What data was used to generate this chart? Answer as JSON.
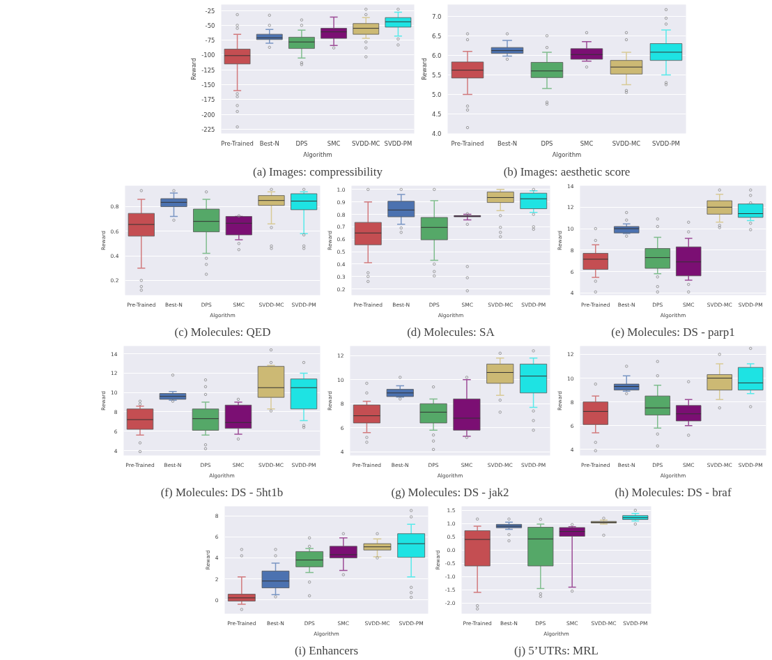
{
  "chart_data": [
    {
      "type": "box",
      "title": "(a) Images: compressibility",
      "xlabel": "Algorithm",
      "ylabel": "Reward",
      "categories": [
        "Pre-Trained",
        "Best-N",
        "DPS",
        "SMC",
        "SVDD-MC",
        "SVDD-PM"
      ],
      "colors": [
        "#c44e52",
        "#4c72b0",
        "#55a868",
        "#7b0f73",
        "#ccb974",
        "#1ee3e3"
      ],
      "ylim": [
        -232,
        -15
      ],
      "yticks": [
        -225,
        -200,
        -175,
        -150,
        -125,
        -100,
        -75,
        -50,
        -25
      ],
      "grid": "y",
      "legend": false,
      "boxes": [
        {
          "low": -160,
          "q1": -115,
          "median": -101,
          "q3": -90,
          "high": -65,
          "outliers": [
            -32,
            -50,
            -55,
            -165,
            -170,
            -185,
            -195,
            -221
          ]
        },
        {
          "low": -80,
          "q1": -74,
          "median": -71,
          "q3": -65,
          "high": -57,
          "outliers": [
            -33,
            -50,
            -87
          ]
        },
        {
          "low": -105,
          "q1": -89,
          "median": -78,
          "q3": -70,
          "high": -58,
          "outliers": [
            -41,
            -50,
            -113,
            -116
          ]
        },
        {
          "low": -84,
          "q1": -72,
          "median": -61,
          "q3": -55,
          "high": -36,
          "outliers": [
            -88
          ]
        },
        {
          "low": -72,
          "q1": -65,
          "median": -55,
          "q3": -47,
          "high": -37,
          "outliers": [
            -23,
            -32,
            -78,
            -88,
            -103
          ]
        },
        {
          "low": -68,
          "q1": -53,
          "median": -44,
          "q3": -37,
          "high": -28,
          "outliers": [
            -23,
            -73,
            -83
          ]
        }
      ]
    },
    {
      "type": "box",
      "title": "(b) Images: aesthetic score",
      "xlabel": "Algorithm",
      "ylabel": "Reward",
      "categories": [
        "Pre-Trained",
        "Best-N",
        "DPS",
        "SMC",
        "SVDD-MC",
        "SVDD-PM"
      ],
      "colors": [
        "#c44e52",
        "#4c72b0",
        "#55a868",
        "#7b0f73",
        "#ccb974",
        "#1ee3e3"
      ],
      "ylim": [
        4.0,
        7.3
      ],
      "yticks": [
        {
          "value": 4,
          "label": "4.0"
        },
        4.5,
        {
          "value": 5,
          "label": "5.0"
        },
        5.5,
        {
          "value": 6,
          "label": "6.0"
        },
        6.5,
        {
          "value": 7,
          "label": "7.0"
        }
      ],
      "grid": "y",
      "legend": false,
      "boxes": [
        {
          "low": 5.0,
          "q1": 5.42,
          "median": 5.62,
          "q3": 5.83,
          "high": 6.1,
          "outliers": [
            6.55,
            6.4,
            4.7,
            4.6,
            4.15
          ]
        },
        {
          "low": 5.98,
          "q1": 6.05,
          "median": 6.12,
          "q3": 6.2,
          "high": 6.38,
          "outliers": [
            6.55,
            5.9
          ]
        },
        {
          "low": 5.15,
          "q1": 5.43,
          "median": 5.6,
          "q3": 5.82,
          "high": 6.08,
          "outliers": [
            6.5,
            6.2,
            4.8,
            4.75
          ]
        },
        {
          "low": 5.85,
          "q1": 5.9,
          "median": 6.02,
          "q3": 6.17,
          "high": 6.35,
          "outliers": [
            6.58,
            5.7
          ]
        },
        {
          "low": 5.25,
          "q1": 5.52,
          "median": 5.7,
          "q3": 5.87,
          "high": 6.08,
          "outliers": [
            6.58,
            6.4,
            5.1,
            5.05
          ]
        },
        {
          "low": 5.5,
          "q1": 5.87,
          "median": 6.08,
          "q3": 6.3,
          "high": 6.65,
          "outliers": [
            7.17,
            6.95,
            6.8,
            5.3,
            5.25
          ]
        }
      ]
    },
    {
      "type": "box",
      "title": "(c) Molecules: QED",
      "xlabel": "Algorithm",
      "ylabel": "Reward",
      "categories": [
        "Pre-Trained",
        "Best-N",
        "DPS",
        "SMC",
        "SVDD-MC",
        "SVDD-PM"
      ],
      "colors": [
        "#c44e52",
        "#4c72b0",
        "#55a868",
        "#7b0f73",
        "#ccb974",
        "#1ee3e3"
      ],
      "ylim": [
        0.08,
        0.97
      ],
      "yticks": [
        0.2,
        0.4,
        0.6,
        0.8
      ],
      "grid": "y",
      "legend": false,
      "boxes": [
        {
          "low": 0.3,
          "q1": 0.56,
          "median": 0.655,
          "q3": 0.745,
          "high": 0.86,
          "outliers": [
            0.93,
            0.2,
            0.15,
            0.12
          ]
        },
        {
          "low": 0.72,
          "q1": 0.8,
          "median": 0.835,
          "q3": 0.865,
          "high": 0.91,
          "outliers": [
            0.93,
            0.69
          ]
        },
        {
          "low": 0.42,
          "q1": 0.595,
          "median": 0.68,
          "q3": 0.78,
          "high": 0.86,
          "outliers": [
            0.92,
            0.38,
            0.33,
            0.25
          ]
        },
        {
          "low": 0.53,
          "q1": 0.57,
          "median": 0.665,
          "q3": 0.72,
          "high": 0.72,
          "outliers": [
            0.725,
            0.5,
            0.45
          ]
        },
        {
          "low": 0.66,
          "q1": 0.81,
          "median": 0.85,
          "q3": 0.89,
          "high": 0.92,
          "outliers": [
            0.94,
            0.63,
            0.48,
            0.46
          ]
        },
        {
          "low": 0.58,
          "q1": 0.775,
          "median": 0.845,
          "q3": 0.905,
          "high": 0.92,
          "outliers": [
            0.94,
            0.57,
            0.48,
            0.46
          ]
        }
      ]
    },
    {
      "type": "box",
      "title": "(d) Molecules: SA",
      "xlabel": "Algorithm",
      "ylabel": "Reward",
      "categories": [
        "Pre-Trained",
        "Best-N",
        "DPS",
        "SMC",
        "SVDD-MC",
        "SVDD-PM"
      ],
      "colors": [
        "#c44e52",
        "#4c72b0",
        "#55a868",
        "#7b0f73",
        "#ccb974",
        "#1ee3e3"
      ],
      "ylim": [
        0.15,
        1.03
      ],
      "yticks": [
        0.2,
        0.3,
        0.4,
        0.5,
        0.6,
        0.7,
        0.8,
        0.9,
        {
          "value": 1,
          "label": "1.0"
        }
      ],
      "grid": "y",
      "legend": false,
      "boxes": [
        {
          "low": 0.41,
          "q1": 0.555,
          "median": 0.65,
          "q3": 0.735,
          "high": 0.9,
          "outliers": [
            1.0,
            0.33,
            0.3,
            0.26
          ]
        },
        {
          "low": 0.72,
          "q1": 0.78,
          "median": 0.835,
          "q3": 0.905,
          "high": 0.96,
          "outliers": [
            1.0,
            0.69,
            0.655
          ]
        },
        {
          "low": 0.43,
          "q1": 0.595,
          "median": 0.695,
          "q3": 0.775,
          "high": 0.91,
          "outliers": [
            1.0,
            0.4,
            0.34,
            0.305
          ]
        },
        {
          "low": 0.755,
          "q1": 0.78,
          "median": 0.785,
          "q3": 0.79,
          "high": 0.8,
          "outliers": [
            0.805,
            0.72,
            0.38,
            0.29,
            0.185
          ]
        },
        {
          "low": 0.83,
          "q1": 0.895,
          "median": 0.935,
          "q3": 0.98,
          "high": 1.0,
          "outliers": [
            0.79,
            0.695,
            0.655,
            0.62
          ]
        },
        {
          "low": 0.815,
          "q1": 0.845,
          "median": 0.925,
          "q3": 0.97,
          "high": 0.99,
          "outliers": [
            1.0,
            0.8,
            0.7,
            0.68
          ]
        }
      ]
    },
    {
      "type": "box",
      "title": "(e) Molecules: DS - parp1",
      "xlabel": "Algorithm",
      "ylabel": "Reward",
      "categories": [
        "Pre-Trained",
        "Best-N",
        "DPS",
        "SMC",
        "SVDD-MC",
        "SVDD-PM"
      ],
      "colors": [
        "#c44e52",
        "#4c72b0",
        "#55a868",
        "#7b0f73",
        "#ccb974",
        "#1ee3e3"
      ],
      "ylim": [
        3.8,
        14
      ],
      "yticks": [
        4,
        6,
        8,
        10,
        12,
        14
      ],
      "grid": "y",
      "legend": false,
      "boxes": [
        {
          "low": 5.45,
          "q1": 6.2,
          "median": 7.15,
          "q3": 7.7,
          "high": 8.5,
          "outliers": [
            10,
            8.9,
            5.1,
            4.1
          ]
        },
        {
          "low": 9.55,
          "q1": 9.6,
          "median": 10.0,
          "q3": 10.2,
          "high": 10.45,
          "outliers": [
            11.5,
            10.8,
            9.3
          ]
        },
        {
          "low": 5.8,
          "q1": 6.3,
          "median": 7.3,
          "q3": 8.15,
          "high": 9.2,
          "outliers": [
            10.9,
            10.2,
            5.5,
            4.6,
            4.1
          ]
        },
        {
          "low": 5.2,
          "q1": 5.6,
          "median": 6.9,
          "q3": 8.3,
          "high": 9.1,
          "outliers": [
            10.6,
            9.7,
            4.8,
            4.1
          ]
        },
        {
          "low": 10.6,
          "q1": 11.35,
          "median": 12.0,
          "q3": 12.6,
          "high": 13.2,
          "outliers": [
            13.6,
            10.3,
            10.1
          ]
        },
        {
          "low": 10.75,
          "q1": 11.05,
          "median": 11.4,
          "q3": 12.3,
          "high": 12.3,
          "outliers": [
            13.6,
            13.1,
            12.4,
            10.5,
            9.9
          ]
        }
      ]
    },
    {
      "type": "box",
      "title": "(f) Molecules: DS - 5ht1b",
      "xlabel": "Algorithm",
      "ylabel": "Reward",
      "categories": [
        "Pre-Trained",
        "Best-N",
        "DPS",
        "SMC",
        "SVDD-MC",
        "SVDD-PM"
      ],
      "colors": [
        "#c44e52",
        "#4c72b0",
        "#55a868",
        "#7b0f73",
        "#ccb974",
        "#1ee3e3"
      ],
      "ylim": [
        3.5,
        14.8
      ],
      "yticks": [
        4,
        6,
        8,
        10,
        12,
        14
      ],
      "grid": "y",
      "legend": false,
      "boxes": [
        {
          "low": 5.6,
          "q1": 6.2,
          "median": 7.2,
          "q3": 8.3,
          "high": 8.6,
          "outliers": [
            9.1,
            8.8,
            4.8,
            3.9
          ]
        },
        {
          "low": 9.2,
          "q1": 9.3,
          "median": 9.6,
          "q3": 9.9,
          "high": 10.1,
          "outliers": [
            11.8,
            9.1
          ]
        },
        {
          "low": 5.6,
          "q1": 6.1,
          "median": 7.3,
          "q3": 8.3,
          "high": 9.0,
          "outliers": [
            11.3,
            10.6,
            9.8,
            4.6,
            4.2
          ]
        },
        {
          "low": 5.7,
          "q1": 6.3,
          "median": 6.9,
          "q3": 8.7,
          "high": 9.0,
          "outliers": [
            9.3,
            5.2
          ]
        },
        {
          "low": 8.3,
          "q1": 9.5,
          "median": 10.5,
          "q3": 12.7,
          "high": 12.8,
          "outliers": [
            14.4,
            13.1,
            8.1
          ]
        },
        {
          "low": 7.1,
          "q1": 8.3,
          "median": 10.5,
          "q3": 11.4,
          "high": 12.0,
          "outliers": [
            13.1,
            6.6,
            6.4
          ]
        }
      ]
    },
    {
      "type": "box",
      "title": "(g) Molecules: DS - jak2",
      "xlabel": "Algorithm",
      "ylabel": "Reward",
      "categories": [
        "Pre-Trained",
        "Best-N",
        "DPS",
        "SMC",
        "SVDD-MC",
        "SVDD-PM"
      ],
      "colors": [
        "#c44e52",
        "#4c72b0",
        "#55a868",
        "#7b0f73",
        "#ccb974",
        "#1ee3e3"
      ],
      "ylim": [
        3.7,
        12.8
      ],
      "yticks": [
        4,
        6,
        8,
        10,
        12
      ],
      "grid": "y",
      "legend": false,
      "boxes": [
        {
          "low": 5.6,
          "q1": 6.4,
          "median": 7.0,
          "q3": 7.9,
          "high": 8.2,
          "outliers": [
            9.7,
            8.9,
            5.2,
            4.8
          ]
        },
        {
          "low": 8.55,
          "q1": 8.6,
          "median": 8.9,
          "q3": 9.2,
          "high": 9.5,
          "outliers": [
            10.2,
            8.4
          ]
        },
        {
          "low": 5.8,
          "q1": 6.4,
          "median": 7.3,
          "q3": 8.0,
          "high": 8.4,
          "outliers": [
            9.4,
            5.4,
            4.9,
            4.2
          ]
        },
        {
          "low": 5.3,
          "q1": 5.8,
          "median": 6.8,
          "q3": 8.4,
          "high": 10.0,
          "outliers": [
            10.2,
            5.2
          ]
        },
        {
          "low": 8.7,
          "q1": 9.7,
          "median": 10.6,
          "q3": 11.3,
          "high": 11.8,
          "outliers": [
            12.2,
            8.3,
            7.3
          ]
        },
        {
          "low": 7.7,
          "q1": 8.9,
          "median": 10.3,
          "q3": 11.3,
          "high": 11.8,
          "outliers": [
            12.4,
            7.4,
            6.6,
            5.8
          ]
        }
      ]
    },
    {
      "type": "box",
      "title": "(h) Molecules: DS - braf",
      "xlabel": "Algorithm",
      "ylabel": "Reward",
      "categories": [
        "Pre-Trained",
        "Best-N",
        "DPS",
        "SMC",
        "SVDD-MC",
        "SVDD-PM"
      ],
      "colors": [
        "#c44e52",
        "#4c72b0",
        "#55a868",
        "#7b0f73",
        "#ccb974",
        "#1ee3e3"
      ],
      "ylim": [
        3.5,
        12.7
      ],
      "yticks": [
        4,
        6,
        8,
        10,
        12
      ],
      "grid": "y",
      "legend": false,
      "boxes": [
        {
          "low": 5.4,
          "q1": 6.1,
          "median": 7.2,
          "q3": 8.0,
          "high": 8.5,
          "outliers": [
            9.5,
            4.6,
            3.9
          ]
        },
        {
          "low": 8.9,
          "q1": 9.0,
          "median": 9.3,
          "q3": 9.5,
          "high": 10.2,
          "outliers": [
            11.0,
            8.7
          ]
        },
        {
          "low": 5.8,
          "q1": 6.9,
          "median": 7.5,
          "q3": 8.5,
          "high": 9.4,
          "outliers": [
            11.4,
            10.2,
            5.3,
            4.3
          ]
        },
        {
          "low": 6.0,
          "q1": 6.4,
          "median": 7.0,
          "q3": 7.7,
          "high": 8.2,
          "outliers": [
            9.7,
            5.2
          ]
        },
        {
          "low": 8.2,
          "q1": 9.0,
          "median": 10.0,
          "q3": 10.3,
          "high": 11.2,
          "outliers": [
            12.0,
            7.5
          ]
        },
        {
          "low": 8.7,
          "q1": 9.0,
          "median": 9.6,
          "q3": 10.9,
          "high": 11.2,
          "outliers": [
            12.5,
            7.6
          ]
        }
      ]
    },
    {
      "type": "box",
      "title": "(i) Enhancers",
      "xlabel": "Algorithm",
      "ylabel": "Reward",
      "categories": [
        "Pre-Trained",
        "Best-N",
        "DPS",
        "SMC",
        "SVDD-MC",
        "SVDD-PM"
      ],
      "colors": [
        "#c44e52",
        "#4c72b0",
        "#55a868",
        "#7b0f73",
        "#ccb974",
        "#1ee3e3"
      ],
      "ylim": [
        -1.3,
        8.9
      ],
      "yticks": [
        0,
        2,
        4,
        6,
        8
      ],
      "grid": "y",
      "legend": false,
      "boxes": [
        {
          "low": -0.4,
          "q1": -0.1,
          "median": 0.2,
          "q3": 0.55,
          "high": 2.2,
          "outliers": [
            4.8,
            4.2,
            -0.9
          ]
        },
        {
          "low": 0.5,
          "q1": 1.15,
          "median": 1.8,
          "q3": 2.75,
          "high": 3.5,
          "outliers": [
            4.8,
            4.2,
            0.3
          ]
        },
        {
          "low": 2.6,
          "q1": 3.15,
          "median": 3.8,
          "q3": 4.6,
          "high": 4.9,
          "outliers": [
            5.9,
            5.1,
            1.7,
            0.4
          ]
        },
        {
          "low": 2.8,
          "q1": 4.0,
          "median": 4.3,
          "q3": 5.1,
          "high": 5.9,
          "outliers": [
            6.3,
            2.4
          ]
        },
        {
          "low": 4.1,
          "q1": 4.75,
          "median": 5.05,
          "q3": 5.35,
          "high": 5.8,
          "outliers": [
            6.3,
            4.0
          ]
        },
        {
          "low": 2.2,
          "q1": 4.05,
          "median": 5.35,
          "q3": 6.3,
          "high": 7.2,
          "outliers": [
            8.5,
            7.9,
            1.2,
            0.7,
            0.25
          ]
        }
      ]
    },
    {
      "type": "box",
      "title": "(j) 5’UTRs: MRL",
      "xlabel": "Algorithm",
      "ylabel": "Reward",
      "categories": [
        "Pre-Trained",
        "Best-N",
        "DPS",
        "SMC",
        "SVDD-MC",
        "SVDD-PM"
      ],
      "colors": [
        "#c44e52",
        "#4c72b0",
        "#55a868",
        "#7b0f73",
        "#ccb974",
        "#1ee3e3"
      ],
      "ylim": [
        -2.4,
        1.65
      ],
      "yticks": [
        {
          "value": -2,
          "label": "-2.0"
        },
        -1.5,
        {
          "value": -1,
          "label": "-1.0"
        },
        -0.5,
        {
          "value": 0,
          "label": "0.0"
        },
        0.5,
        {
          "value": 1,
          "label": "1.0"
        },
        1.5
      ],
      "grid": "y",
      "legend": false,
      "boxes": [
        {
          "low": -1.6,
          "q1": -0.6,
          "median": 0.4,
          "q3": 0.73,
          "high": 0.9,
          "outliers": [
            1.17,
            -2.1,
            -2.22
          ]
        },
        {
          "low": 0.78,
          "q1": 0.84,
          "median": 0.9,
          "q3": 0.97,
          "high": 1.05,
          "outliers": [
            1.17,
            0.58,
            0.35
          ]
        },
        {
          "low": -1.45,
          "q1": -0.6,
          "median": 0.42,
          "q3": 0.86,
          "high": 0.98,
          "outliers": [
            1.16,
            -1.65,
            -1.75
          ]
        },
        {
          "low": -1.4,
          "q1": 0.52,
          "median": 0.7,
          "q3": 0.85,
          "high": 0.88,
          "outliers": [
            0.96,
            -1.55
          ]
        },
        {
          "low": 0.98,
          "q1": 1.02,
          "median": 1.05,
          "q3": 1.08,
          "high": 1.13,
          "outliers": [
            1.2,
            0.56
          ]
        },
        {
          "low": 1.1,
          "q1": 1.15,
          "median": 1.22,
          "q3": 1.3,
          "high": 1.38,
          "outliers": [
            1.5,
            0.98
          ]
        }
      ]
    }
  ]
}
